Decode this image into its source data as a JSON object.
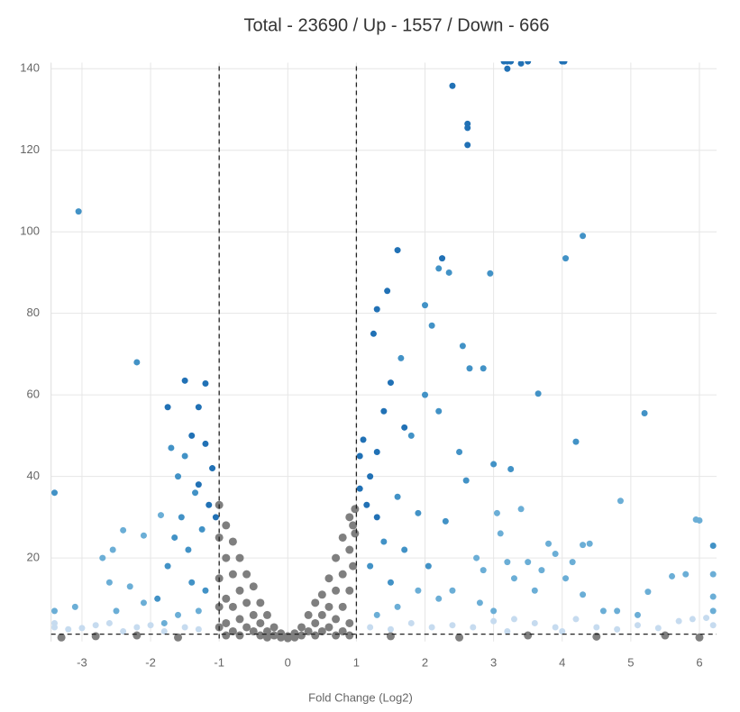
{
  "chart_data": {
    "type": "scatter",
    "title": "Total - 23690 / Up - 1557 / Down - 666",
    "x_label": "Fold Change (Log2)",
    "xlim": [
      -3.45,
      6.25
    ],
    "xticks": [
      -3,
      -2,
      -1,
      0,
      1,
      2,
      3,
      4,
      5,
      6
    ],
    "ylim": [
      -0.5,
      141.5
    ],
    "yticks": [
      20,
      40,
      60,
      80,
      100,
      120,
      140
    ],
    "grid": true,
    "thresholds": {
      "x": [
        -1,
        1
      ],
      "y": 1.3
    },
    "series": [
      {
        "color": "#7f7f7f",
        "x": [
          -1,
          -1,
          -1,
          -1,
          -1,
          -0.9,
          -0.9,
          -0.9,
          -0.9,
          -0.9,
          -0.8,
          -0.8,
          -0.8,
          -0.8,
          -0.7,
          -0.7,
          -0.7,
          -0.7,
          -0.6,
          -0.6,
          -0.6,
          -0.5,
          -0.5,
          -0.5,
          -0.4,
          -0.4,
          -0.4,
          -0.3,
          -0.3,
          -0.3,
          -0.2,
          -0.2,
          -0.1,
          -0.1,
          0,
          0,
          0.1,
          0.1,
          0.2,
          0.2,
          0.3,
          0.3,
          0.4,
          0.4,
          0.4,
          0.5,
          0.5,
          0.5,
          0.6,
          0.6,
          0.6,
          0.7,
          0.7,
          0.7,
          0.7,
          0.8,
          0.8,
          0.8,
          0.8,
          0.9,
          0.9,
          0.9,
          0.9,
          0.9,
          0.95,
          0.95,
          0.98,
          0.98,
          -3.3,
          -2.8,
          -2.2,
          -1.6,
          1.5,
          2.5,
          3.5,
          4.5,
          5.5,
          6.0
        ],
        "values": [
          33,
          25,
          15,
          8,
          3,
          28,
          20,
          10,
          4,
          1,
          24,
          16,
          8,
          2,
          20,
          12,
          5,
          1,
          16,
          9,
          3,
          13,
          6,
          2,
          9,
          4,
          1,
          6,
          2,
          0.5,
          3,
          1,
          1.5,
          0.5,
          0.3,
          0.8,
          1.5,
          0.5,
          3,
          1,
          6,
          2,
          9,
          4,
          1,
          11,
          6,
          2,
          15,
          8,
          3,
          20,
          12,
          5,
          1,
          25,
          16,
          8,
          2,
          30,
          22,
          12,
          4,
          1,
          28,
          18,
          32,
          26,
          0.5,
          0.8,
          1,
          0.5,
          0.8,
          0.5,
          1,
          0.7,
          1,
          0.5
        ]
      },
      {
        "color": "#c6dbef",
        "x": [
          -3.4,
          -3.4,
          -3.2,
          -3.0,
          -2.8,
          -2.6,
          -2.4,
          -2.2,
          -2.0,
          -1.8,
          -1.5,
          -1.3,
          1.2,
          1.5,
          1.8,
          2.1,
          2.4,
          2.7,
          3.0,
          3.3,
          3.6,
          3.9,
          4.2,
          4.5,
          4.8,
          5.1,
          5.4,
          5.7,
          5.9,
          6.1,
          6.2,
          4.0,
          3.2
        ],
        "values": [
          4,
          3,
          2.5,
          2.8,
          3.5,
          4,
          2,
          3,
          3.5,
          2,
          3,
          2.5,
          3,
          2.5,
          4,
          3,
          3.5,
          3,
          4.5,
          5,
          4,
          3,
          5,
          3,
          2.5,
          3.5,
          2.8,
          4.5,
          5,
          5.3,
          3.5,
          2,
          2
        ]
      },
      {
        "color": "#6baed6",
        "x": [
          -2.4,
          -2.1,
          -2.55,
          -2.7,
          -1.85,
          -2.6,
          -2.3,
          -2.1,
          -2.5,
          -3.1,
          -3.4,
          3.4,
          3.05,
          3.1,
          4.85,
          3.8,
          3.9,
          4.4,
          4.3,
          5.95,
          6.0,
          6.2,
          5.8,
          5.6,
          5.25,
          4.15,
          4.05,
          3.7,
          3.5,
          3.3,
          3.2,
          2.75,
          2.85,
          3.6,
          4.3,
          4.6,
          4.8,
          5.1,
          6.2,
          6.2,
          2.8,
          3.0,
          2.4,
          2.2,
          1.9,
          1.6,
          1.3,
          -1.3,
          -1.6,
          -1.8
        ],
        "values": [
          26.8,
          25.5,
          22,
          20,
          30.5,
          14,
          13,
          9,
          7,
          8,
          7,
          32,
          31,
          26,
          34,
          23.5,
          21,
          23.5,
          23.2,
          29.4,
          29.2,
          16,
          16,
          15.5,
          11.7,
          19,
          15,
          17,
          19,
          15,
          19,
          20,
          17,
          12,
          11,
          7,
          7,
          6,
          10.5,
          7,
          9,
          7,
          12,
          10,
          12,
          8,
          6,
          7,
          6,
          4
        ]
      },
      {
        "color": "#4292c6",
        "x": [
          -3.05,
          -2.2,
          -1.7,
          -1.5,
          -1.6,
          -1.35,
          -1.55,
          -1.25,
          -1.45,
          -1.75,
          -1.9,
          -3.4,
          1.65,
          2.0,
          2.1,
          2.2,
          2.35,
          2.95,
          2.55,
          2.65,
          2.85,
          4.05,
          4.3,
          3.65,
          5.2,
          4.2,
          3.0,
          3.25,
          2.0,
          2.2,
          1.8,
          2.5,
          2.6,
          1.6,
          1.9,
          2.3,
          6.2,
          1.4,
          1.2,
          1.5,
          2.05,
          1.7,
          -1.4,
          -1.2,
          -1.65
        ],
        "values": [
          105,
          68,
          47,
          45,
          40,
          36,
          30,
          27,
          22,
          18,
          10,
          36,
          69,
          82,
          77,
          91,
          90,
          89.8,
          72,
          66.5,
          66.5,
          93.5,
          99,
          60.3,
          55.5,
          48.5,
          43,
          41.8,
          60,
          56,
          50,
          46,
          39,
          35,
          31,
          29,
          23,
          24,
          18,
          14,
          18,
          22,
          14,
          12,
          25
        ]
      },
      {
        "color": "#2171b5",
        "x": [
          -1.5,
          -1.2,
          -1.75,
          -1.3,
          -1.4,
          -1.2,
          -1.1,
          -1.3,
          -1.15,
          -1.05,
          1.3,
          1.45,
          1.6,
          1.25,
          1.1,
          1.05,
          1.2,
          1.05,
          1.15,
          1.3,
          2.25,
          2.4,
          2.62,
          2.62,
          2.62,
          3.15,
          3.2,
          3.25,
          3.4,
          3.5,
          4.0,
          4.03,
          3.2,
          1.5,
          1.4,
          1.7,
          1.3
        ],
        "values": [
          63.5,
          62.8,
          57,
          57,
          50,
          48,
          42,
          38,
          33,
          30,
          81,
          85.5,
          95.5,
          75,
          49,
          45,
          40,
          37,
          33,
          30,
          93.5,
          135.8,
          126.5,
          125.5,
          121.3,
          141.8,
          141.8,
          141.8,
          141.3,
          141.8,
          141.8,
          141.8,
          140,
          63,
          56,
          52,
          46
        ]
      }
    ]
  }
}
